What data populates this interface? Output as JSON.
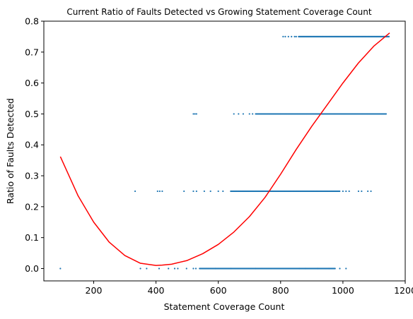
{
  "chart_data": {
    "type": "scatter",
    "title": "Current Ratio of Faults Detected vs Growing Statement Coverage Count",
    "xlabel": "Statement Coverage Count",
    "ylabel": "Ratio of Faults Detected",
    "xlim": [
      40,
      1200
    ],
    "ylim": [
      -0.04,
      0.8
    ],
    "xticks": [
      200,
      400,
      600,
      800,
      1000,
      1200
    ],
    "yticks": [
      0.0,
      0.1,
      0.2,
      0.3,
      0.4,
      0.5,
      0.6,
      0.7,
      0.8
    ],
    "grid": false,
    "colors": {
      "points": "#1f77b4",
      "fit": "#ff0000"
    },
    "series": [
      {
        "type": "scatter",
        "bands": [
          {
            "y": 0.0,
            "x_min": 93,
            "x_max": 1010,
            "dense_from": 540,
            "dense_to": 975,
            "sparse_x": [
              93,
              350,
              370,
              410,
              440,
              460,
              470,
              498,
              520,
              528,
              590,
              640,
              720,
              860,
              880,
              920,
              955,
              990,
              1010
            ]
          },
          {
            "y": 0.25,
            "x_min": 333,
            "x_max": 1090,
            "dense_from": 640,
            "dense_to": 990,
            "sparse_x": [
              333,
              405,
              412,
              420,
              490,
              520,
              530,
              555,
              575,
              600,
              615,
              1000,
              1010,
              1020,
              1050,
              1060,
              1080,
              1090
            ]
          },
          {
            "y": 0.5,
            "x_min": 520,
            "x_max": 1140,
            "dense_from": 720,
            "dense_to": 1140,
            "sparse_x": [
              520,
              525,
              530,
              650,
              665,
              680,
              700,
              710
            ]
          },
          {
            "y": 0.75,
            "x_min": 808,
            "x_max": 1150,
            "dense_from": 858,
            "dense_to": 1150,
            "sparse_x": [
              808,
              815,
              825,
              835,
              845,
              850
            ]
          }
        ]
      },
      {
        "type": "line",
        "x": [
          93,
          150,
          200,
          250,
          300,
          350,
          400,
          420,
          450,
          500,
          550,
          600,
          650,
          700,
          750,
          800,
          850,
          900,
          950,
          1000,
          1050,
          1100,
          1150
        ],
        "y": [
          0.362,
          0.235,
          0.15,
          0.085,
          0.042,
          0.017,
          0.01,
          0.011,
          0.014,
          0.026,
          0.048,
          0.078,
          0.118,
          0.168,
          0.23,
          0.305,
          0.385,
          0.46,
          0.53,
          0.6,
          0.665,
          0.72,
          0.762
        ]
      }
    ]
  }
}
